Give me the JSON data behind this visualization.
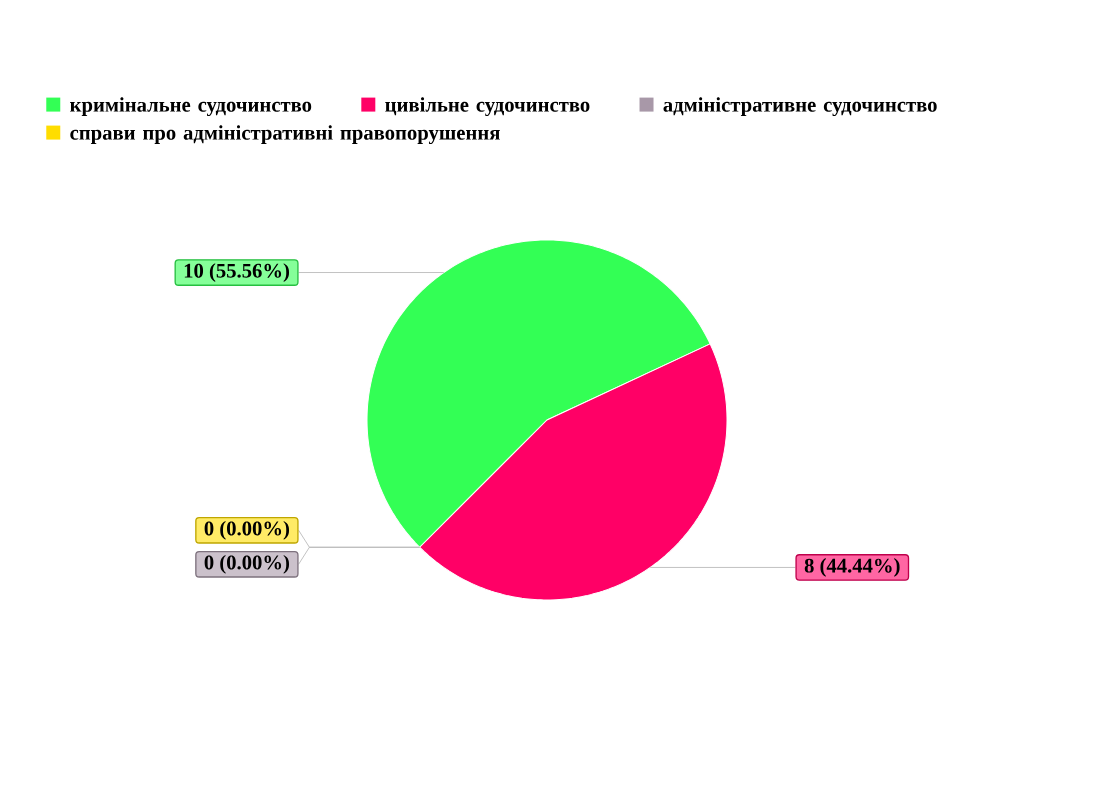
{
  "chart_data": {
    "type": "pie",
    "categories": [
      "кримінальне судочинство",
      "цивільне судочинство",
      "адміністративне судочинство",
      "справи про адміністративні правопорушення"
    ],
    "values": [
      10,
      8,
      0,
      0
    ],
    "colors": [
      "#33ff55",
      "#ff0066",
      "#a898a8",
      "#ffdd00"
    ],
    "value_labels": [
      "10 (55.56%)",
      "8 (44.44%)",
      "0 (0.00%)",
      "0 (0.00%)"
    ],
    "legend": "top"
  }
}
